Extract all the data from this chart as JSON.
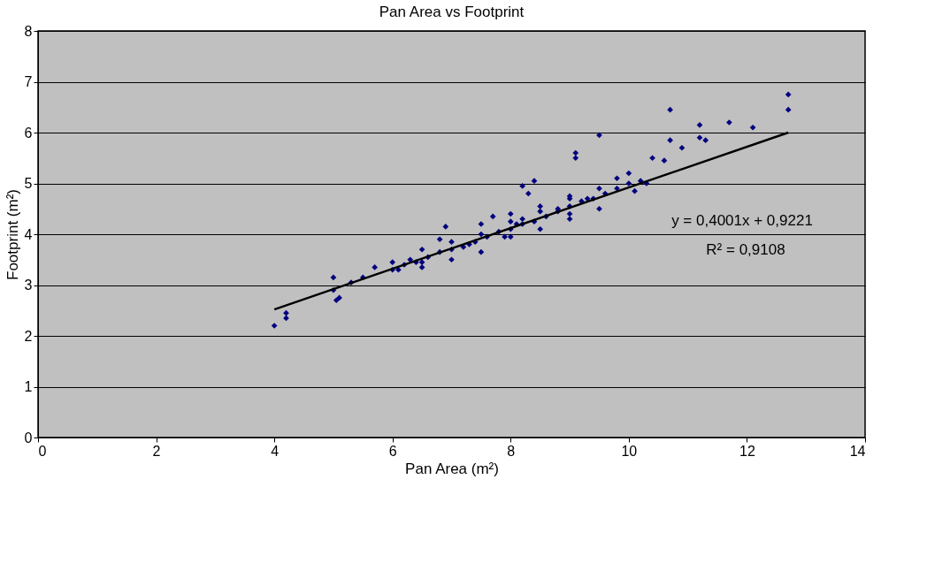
{
  "chart_data": {
    "type": "scatter",
    "title": "Pan Area vs Footprint",
    "xlabel": "Pan Area (m²)",
    "ylabel": "Footprint (m²)",
    "xlim": [
      0,
      14
    ],
    "xticks": [
      0,
      2,
      4,
      6,
      8,
      10,
      12,
      14
    ],
    "ylim": [
      0,
      8
    ],
    "yticks": [
      0,
      1,
      2,
      3,
      4,
      5,
      6,
      7,
      8
    ],
    "grid": "y",
    "marker": "diamond",
    "annotations": [
      "y = 0,4001x + 0,9221",
      "R² = 0,9108"
    ],
    "series": [
      {
        "color": "#000080",
        "x": [
          4.0,
          4.2,
          4.2,
          5.0,
          5.0,
          5.05,
          5.1,
          5.3,
          5.5,
          5.7,
          6.0,
          6.1,
          6.3,
          6.5,
          6.8,
          6.9,
          7.3,
          7.5,
          7.7,
          7.9,
          8.0,
          8.1,
          8.2,
          8.2,
          8.4,
          8.3,
          8.5,
          8.8,
          9.0,
          9.1,
          9.1,
          9.0,
          9.3,
          9.5,
          9.5,
          9.8,
          10.0,
          10.1,
          10.3,
          10.4,
          10.6,
          10.7,
          10.7,
          10.9,
          11.2,
          11.2,
          11.3,
          11.7,
          12.1,
          12.7,
          12.7,
          6.0,
          6.2,
          6.4,
          6.6,
          6.8,
          7.0,
          7.2,
          7.4,
          7.6,
          7.8,
          8.0,
          8.2,
          8.4,
          8.6,
          8.8,
          9.0,
          9.2,
          9.4,
          9.6,
          9.8,
          10.0,
          10.2,
          6.5,
          7.0,
          7.5,
          8.0,
          8.5,
          9.0,
          6.5,
          7.0,
          7.5,
          8.0,
          8.5,
          9.0,
          9.5
        ],
        "values": [
          2.2,
          2.35,
          2.45,
          3.15,
          2.9,
          2.7,
          2.75,
          3.05,
          3.15,
          3.35,
          3.45,
          3.3,
          3.5,
          3.45,
          3.9,
          4.15,
          3.8,
          4.2,
          4.35,
          3.95,
          4.4,
          4.2,
          4.3,
          4.95,
          5.05,
          4.8,
          4.45,
          4.5,
          4.4,
          5.6,
          5.5,
          4.75,
          4.7,
          4.9,
          5.95,
          5.1,
          5.2,
          4.85,
          5.0,
          5.5,
          5.45,
          5.85,
          6.45,
          5.7,
          5.9,
          6.15,
          5.85,
          6.2,
          6.1,
          6.75,
          6.45,
          3.3,
          3.4,
          3.45,
          3.55,
          3.65,
          3.7,
          3.75,
          3.85,
          3.95,
          4.05,
          4.1,
          4.2,
          4.25,
          4.35,
          4.45,
          4.55,
          4.65,
          4.7,
          4.8,
          4.9,
          5.0,
          5.05,
          3.7,
          3.85,
          4.0,
          4.25,
          4.55,
          4.7,
          3.35,
          3.5,
          3.65,
          3.95,
          4.1,
          4.3,
          4.5
        ]
      },
      {
        "type": "line",
        "color": "#000000",
        "marker": "none",
        "x": [
          4.0,
          12.7
        ],
        "values": [
          2.52,
          6.0
        ]
      }
    ]
  }
}
